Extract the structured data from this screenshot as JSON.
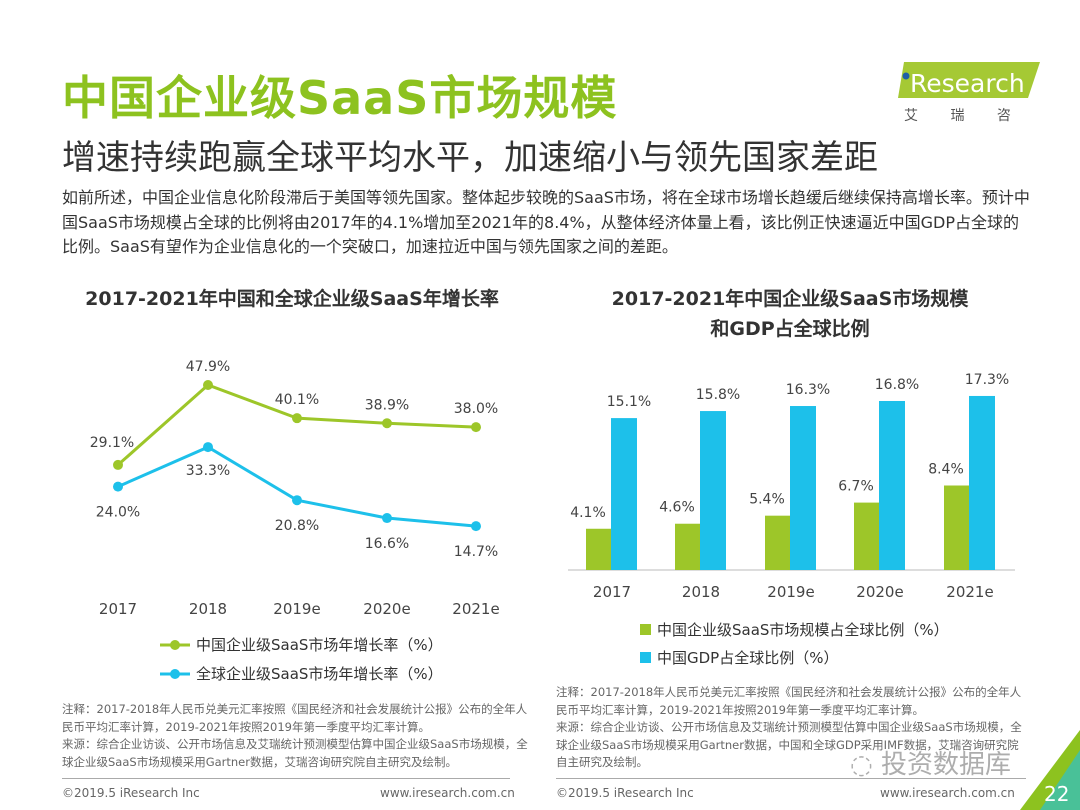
{
  "header": {
    "title": "中国企业级SaaS市场规模",
    "subtitle": "增速持续跑赢全球平均水平，加速缩小与领先国家差距",
    "logo_text": "iResearch",
    "logo_cn": "艾 瑞 咨 询"
  },
  "intro": "如前所述，中国企业信息化阶段滞后于美国等领先国家。整体起步较晚的SaaS市场，将在全球市场增长趋缓后继续保持高增长率。预计中国SaaS市场规模占全球的比例将由2017年的4.1%增加至2021年的8.4%，从整体经济体量上看，该比例正快速逼近中国GDP占全球的比例。SaaS有望作为企业信息化的一个突破口，加速拉近中国与领先国家之间的差距。",
  "colors": {
    "green": "#9dc629",
    "blue": "#1dc0ea",
    "title_green": "#8dc21f"
  },
  "chart_data": [
    {
      "type": "line",
      "title": "2017-2021年中国和全球企业级SaaS年增长率",
      "categories": [
        "2017",
        "2018",
        "2019e",
        "2020e",
        "2021e"
      ],
      "series": [
        {
          "name": "中国企业级SaaS市场年增长率（%）",
          "values": [
            29.1,
            47.9,
            40.1,
            38.9,
            38.0
          ],
          "labels": [
            "29.1%",
            "47.9%",
            "40.1%",
            "38.9%",
            "38.0%"
          ],
          "color": "#9dc629"
        },
        {
          "name": "全球企业级SaaS市场年增长率（%）",
          "values": [
            24.0,
            33.3,
            20.8,
            16.6,
            14.7
          ],
          "labels": [
            "24.0%",
            "33.3%",
            "20.8%",
            "16.6%",
            "14.7%"
          ],
          "color": "#1dc0ea"
        }
      ],
      "grid": false,
      "legend": "bottom"
    },
    {
      "type": "bar",
      "title": "2017-2021年中国企业级SaaS市场规模和GDP占全球比例",
      "title_line1": "2017-2021年中国企业级SaaS市场规模",
      "title_line2": "和GDP占全球比例",
      "categories": [
        "2017",
        "2018",
        "2019e",
        "2020e",
        "2021e"
      ],
      "series": [
        {
          "name": "中国企业级SaaS市场规模占全球比例（%）",
          "values": [
            4.1,
            4.6,
            5.4,
            6.7,
            8.4
          ],
          "labels": [
            "4.1%",
            "4.6%",
            "5.4%",
            "6.7%",
            "8.4%"
          ],
          "color": "#9dc629"
        },
        {
          "name": "中国GDP占全球比例（%）",
          "values": [
            15.1,
            15.8,
            16.3,
            16.8,
            17.3
          ],
          "labels": [
            "15.1%",
            "15.8%",
            "16.3%",
            "16.8%",
            "17.3%"
          ],
          "color": "#1dc0ea"
        }
      ],
      "grid": false,
      "legend": "bottom"
    }
  ],
  "notes": {
    "left": [
      "注释：2017-2018年人民币兑美元汇率按照《国民经济和社会发展统计公报》公布的全年人民币平均汇率计算，2019-2021年按照2019年第一季度平均汇率计算。",
      "来源：综合企业访谈、公开市场信息及艾瑞统计预测模型估算中国企业级SaaS市场规模，全球企业级SaaS市场规模采用Gartner数据，艾瑞咨询研究院自主研究及绘制。"
    ],
    "right": [
      "注释：2017-2018年人民币兑美元汇率按照《国民经济和社会发展统计公报》公布的全年人民币平均汇率计算，2019-2021年按照2019年第一季度平均汇率计算。",
      "来源：综合企业访谈、公开市场信息及艾瑞统计预测模型估算中国企业级SaaS市场规模，全球企业级SaaS市场规模采用Gartner数据，中国和全球GDP采用IMF数据，艾瑞咨询研究院自主研究及绘制。"
    ]
  },
  "footer": {
    "copyright": "©2019.5 iResearch Inc",
    "url": "www.iresearch.com.cn",
    "page": "22",
    "watermark": "投资数据库"
  }
}
